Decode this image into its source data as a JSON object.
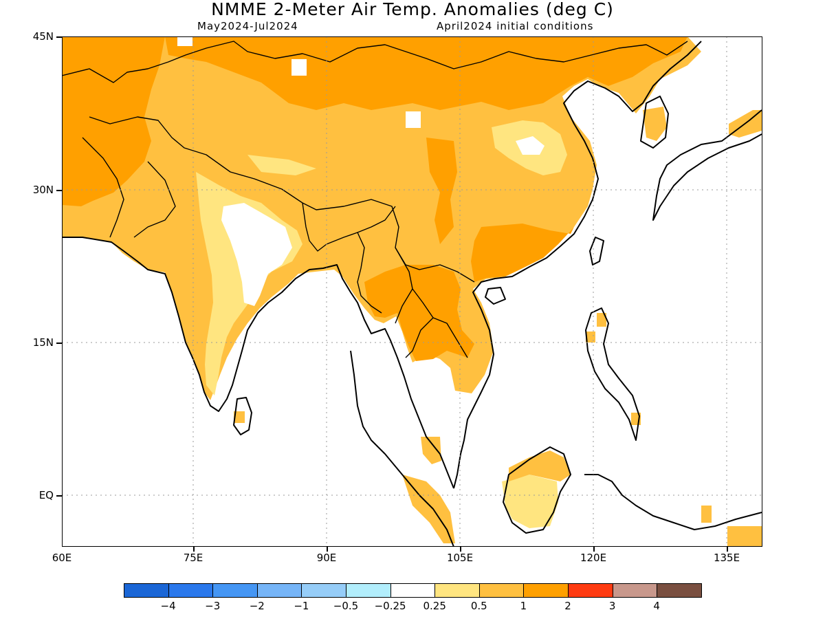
{
  "title": "NMME 2-Meter Air Temp. Anomalies (deg C)",
  "subtitle_left": "May2024-Jul2024",
  "subtitle_right": "April2024 initial conditions",
  "lat_labels": [
    "45N",
    "30N",
    "15N",
    "EQ"
  ],
  "lon_labels": [
    "60E",
    "75E",
    "90E",
    "105E",
    "120E",
    "135E"
  ],
  "colorbar": {
    "colors": [
      "#1a66d6",
      "#2a78ec",
      "#4596f4",
      "#76b5f8",
      "#96cdf8",
      "#b2eefc",
      "#ffffff",
      "#ffe580",
      "#ffc040",
      "#ffa000",
      "#ff3b12",
      "#c8988c",
      "#7a4f40"
    ],
    "labels": [
      "-4",
      "-3",
      "-2",
      "-1",
      "-0.5",
      "-0.25",
      "0.25",
      "0.5",
      "1",
      "2",
      "3",
      "4"
    ]
  },
  "legend_colors": {
    "ocean": "#ffffff",
    "anomaly_0_25_to_0_5": "#ffe580",
    "anomaly_0_5_to_1": "#ffc040",
    "anomaly_1_to_2": "#ffa000"
  }
}
